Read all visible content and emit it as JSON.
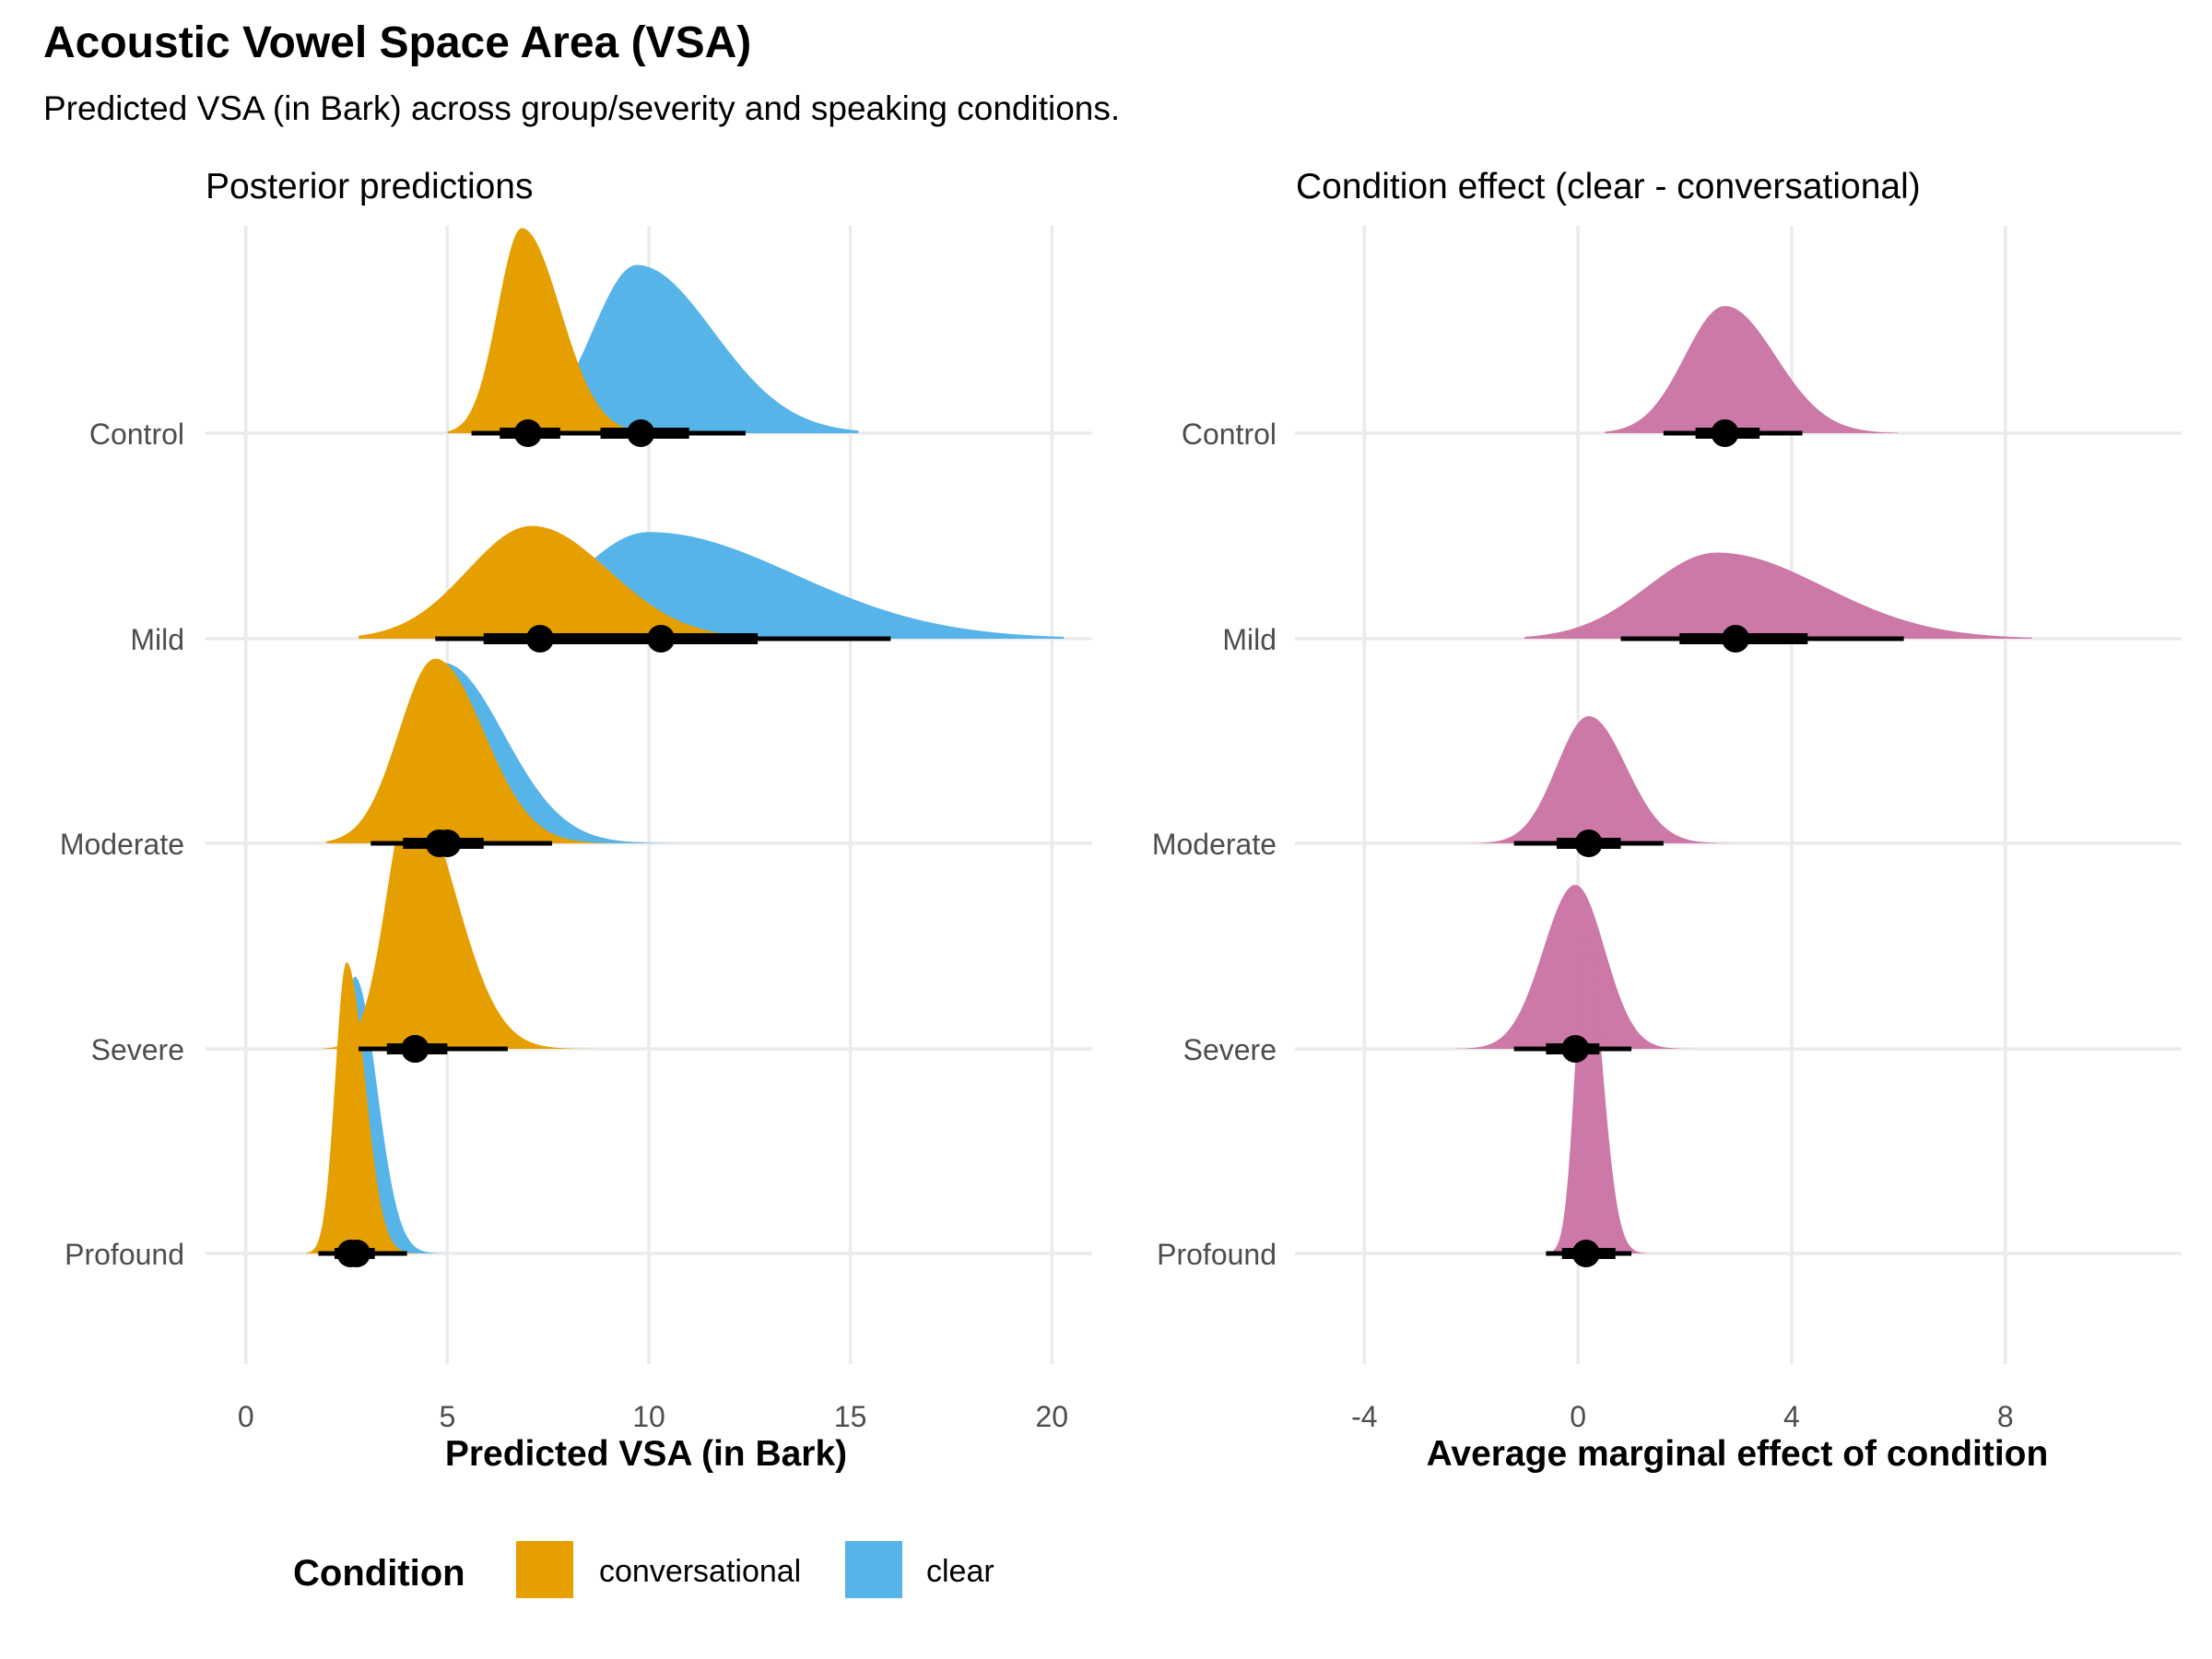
{
  "title": "Acoustic Vowel Space Area (VSA)",
  "subtitle": "Predicted VSA (in Bark) across group/severity and speaking conditions.",
  "groups": [
    "Control",
    "Mild",
    "Moderate",
    "Severe",
    "Profound"
  ],
  "legend": {
    "title": "Condition",
    "items": [
      {
        "label": "conversational",
        "color": "#E69F00"
      },
      {
        "label": "clear",
        "color": "#56B4E9"
      }
    ]
  },
  "chart_data": [
    {
      "type": "density",
      "title": "Posterior predictions",
      "xlabel": "Predicted VSA (in Bark)",
      "ylabel": "",
      "xlim": [
        -1,
        21
      ],
      "xticks": [
        0,
        5,
        10,
        15,
        20
      ],
      "grid": true,
      "legend_position": "bottom",
      "series": [
        {
          "name": "clear",
          "color": "#56B4E9",
          "summaries": [
            {
              "group": "Control",
              "median": 9.8,
              "ci66": [
                8.8,
                11.0
              ],
              "ci95": [
                7.0,
                12.4
              ],
              "range": [
                7.6,
                15.2
              ],
              "peak": 9.7,
              "sd_left": 1.1,
              "sd_right": 1.9,
              "height": 0.82
            },
            {
              "group": "Mild",
              "median": 10.3,
              "ci66": [
                8.7,
                12.7
              ],
              "ci95": [
                6.0,
                16.0
              ],
              "range": [
                6.5,
                20.3
              ],
              "peak": 10.0,
              "sd_left": 1.8,
              "sd_right": 3.6,
              "height": 0.52
            },
            {
              "group": "Moderate",
              "median": 5.0,
              "ci66": [
                4.3,
                5.9
              ],
              "ci95": [
                3.3,
                7.6
              ],
              "range": [
                2.3,
                11.3
              ],
              "peak": 4.9,
              "sd_left": 0.9,
              "sd_right": 1.5,
              "height": 0.88
            },
            {
              "group": "Severe",
              "median": 4.2,
              "ci66": [
                3.6,
                4.9
              ],
              "ci95": [
                2.8,
                6.3
              ],
              "range": [
                2.2,
                8.0
              ],
              "peak": 4.15,
              "sd_left": 0.6,
              "sd_right": 0.9,
              "height": 1.28
            },
            {
              "group": "Profound",
              "median": 2.75,
              "ci66": [
                2.4,
                3.2
              ],
              "ci95": [
                1.9,
                4.0
              ],
              "range": [
                1.5,
                5.8
              ],
              "peak": 2.7,
              "sd_left": 0.28,
              "sd_right": 0.55,
              "height": 1.35
            }
          ]
        },
        {
          "name": "conversational",
          "color": "#E69F00",
          "summaries": [
            {
              "group": "Control",
              "median": 7.0,
              "ci66": [
                6.3,
                7.8
              ],
              "ci95": [
                5.6,
                9.6
              ],
              "range": [
                5.0,
                10.8
              ],
              "peak": 6.85,
              "sd_left": 0.6,
              "sd_right": 0.95,
              "height": 1.0
            },
            {
              "group": "Mild",
              "median": 7.3,
              "ci66": [
                5.9,
                8.9
              ],
              "ci95": [
                4.7,
                11.0
              ],
              "range": [
                2.8,
                13.8
              ],
              "peak": 7.1,
              "sd_left": 1.6,
              "sd_right": 1.9,
              "height": 0.55
            },
            {
              "group": "Moderate",
              "median": 4.8,
              "ci66": [
                3.9,
                5.6
              ],
              "ci95": [
                3.1,
                7.2
              ],
              "range": [
                2.0,
                10.5
              ],
              "peak": 4.7,
              "sd_left": 0.9,
              "sd_right": 1.2,
              "height": 0.9
            },
            {
              "group": "Severe",
              "median": 4.2,
              "ci66": [
                3.5,
                5.0
              ],
              "ci95": [
                2.8,
                6.5
              ],
              "range": [
                1.9,
                9.0
              ],
              "peak": 4.1,
              "sd_left": 0.6,
              "sd_right": 1.1,
              "height": 1.25
            },
            {
              "group": "Profound",
              "median": 2.6,
              "ci66": [
                2.2,
                3.1
              ],
              "ci95": [
                1.8,
                3.8
              ],
              "range": [
                1.5,
                5.0
              ],
              "peak": 2.5,
              "sd_left": 0.28,
              "sd_right": 0.45,
              "height": 1.42
            }
          ]
        }
      ]
    },
    {
      "type": "density",
      "title": "Condition effect (clear - conversational)",
      "xlabel": "Average marginal effect of condition",
      "ylabel": "",
      "xlim": [
        -5.3,
        11.3
      ],
      "xticks": [
        -4,
        0,
        4,
        8
      ],
      "grid": true,
      "series": [
        {
          "name": "",
          "color": "#CC79A7",
          "summaries": [
            {
              "group": "Control",
              "median": 2.75,
              "ci66": [
                2.2,
                3.4
              ],
              "ci95": [
                1.6,
                4.2
              ],
              "range": [
                0.5,
                6.0
              ],
              "peak": 2.75,
              "sd_left": 0.75,
              "sd_right": 0.95,
              "height": 0.62
            },
            {
              "group": "Mild",
              "median": 2.95,
              "ci66": [
                1.9,
                4.3
              ],
              "ci95": [
                0.8,
                6.1
              ],
              "range": [
                -1.0,
                8.5
              ],
              "peak": 2.6,
              "sd_left": 1.3,
              "sd_right": 2.0,
              "height": 0.42
            },
            {
              "group": "Moderate",
              "median": 0.2,
              "ci66": [
                -0.4,
                0.8
              ],
              "ci95": [
                -1.2,
                1.6
              ],
              "range": [
                -2.6,
                3.0
              ],
              "peak": 0.2,
              "sd_left": 0.6,
              "sd_right": 0.7,
              "height": 0.62
            },
            {
              "group": "Severe",
              "median": -0.05,
              "ci66": [
                -0.6,
                0.4
              ],
              "ci95": [
                -1.2,
                1.0
              ],
              "range": [
                -2.3,
                2.2
              ],
              "peak": -0.05,
              "sd_left": 0.6,
              "sd_right": 0.55,
              "height": 0.8
            },
            {
              "group": "Profound",
              "median": 0.15,
              "ci66": [
                -0.3,
                0.7
              ],
              "ci95": [
                -0.6,
                1.0
              ],
              "range": [
                -1.4,
                2.0
              ],
              "peak": 0.15,
              "sd_left": 0.2,
              "sd_right": 0.3,
              "height": 1.55
            }
          ]
        }
      ]
    }
  ]
}
